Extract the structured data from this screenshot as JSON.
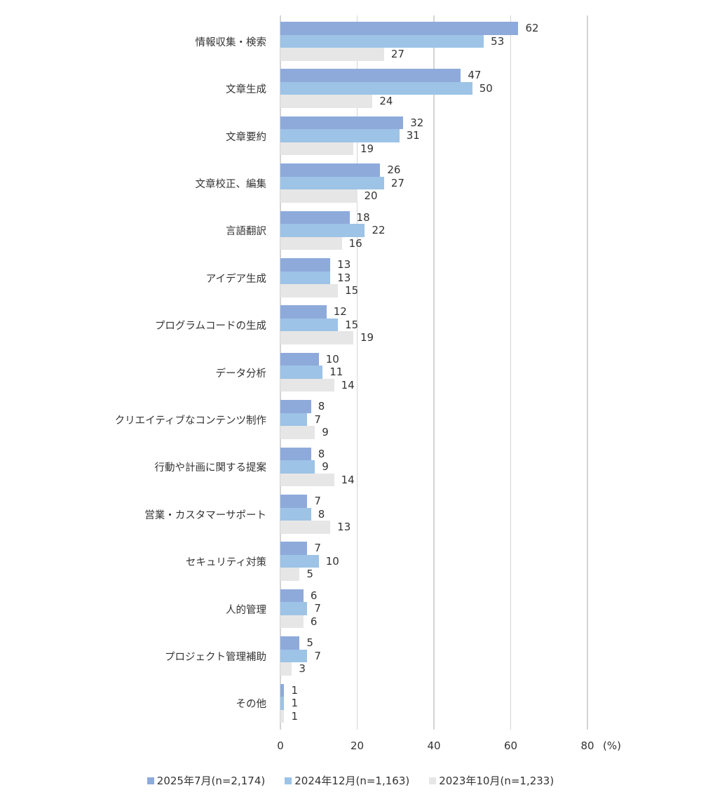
{
  "chart_data": {
    "type": "bar",
    "orientation": "horizontal",
    "title": "",
    "xlabel": "(%)",
    "ylabel": "",
    "xlim": [
      0,
      80
    ],
    "xticks": [
      0,
      20,
      40,
      60,
      80
    ],
    "grid": true,
    "legend_position": "bottom",
    "categories": [
      "情報収集・検索",
      "文章生成",
      "文章要約",
      "文章校正、編集",
      "言語翻訳",
      "アイデア生成",
      "プログラムコードの生成",
      "データ分析",
      "クリエイティブなコンテンツ制作",
      "行動や計画に関する提案",
      "営業・カスタマーサポート",
      "セキュリティ対策",
      "人的管理",
      "プロジェクト管理補助",
      "その他"
    ],
    "series": [
      {
        "name": "2025年7月(n=2,174)",
        "color": "#8eaadb",
        "values": [
          62,
          47,
          32,
          26,
          18,
          13,
          12,
          10,
          8,
          8,
          7,
          7,
          6,
          5,
          1
        ]
      },
      {
        "name": "2024年12月(n=1,163)",
        "color": "#9dc3e6",
        "values": [
          53,
          50,
          31,
          27,
          22,
          13,
          15,
          11,
          7,
          9,
          8,
          10,
          7,
          7,
          1
        ]
      },
      {
        "name": "2023年10月(n=1,233)",
        "color": "#e7e6e6",
        "values": [
          27,
          24,
          19,
          20,
          16,
          15,
          19,
          14,
          9,
          14,
          13,
          5,
          6,
          3,
          1
        ]
      }
    ]
  },
  "axis": {
    "ticks": [
      "0",
      "20",
      "40",
      "60",
      "80"
    ],
    "unit": "(%)"
  },
  "legend": [
    {
      "label": "2025年7月(n=2,174)",
      "color": "#8eaadb"
    },
    {
      "label": "2024年12月(n=1,163)",
      "color": "#9dc3e6"
    },
    {
      "label": "2023年10月(n=1,233)",
      "color": "#e7e6e6"
    }
  ]
}
